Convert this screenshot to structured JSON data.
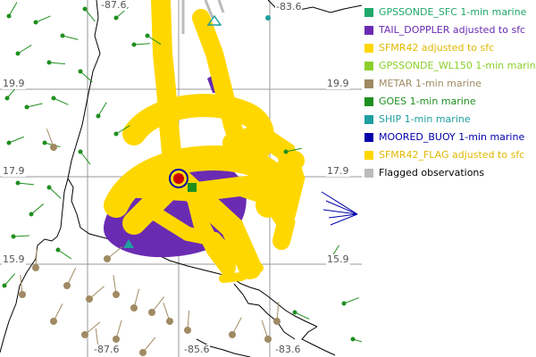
{
  "map": {
    "grid_labels": {
      "top_left": "-87.6",
      "top_right": "-83.6",
      "right_upper": "19.9",
      "left_upper": "19.9",
      "right_mid": "17.9",
      "left_mid": "17.9",
      "right_lower": "15.9",
      "left_lower": "15.9",
      "bottom_left": "-87.6",
      "bottom_mid": "-85.6",
      "bottom_right": "-83.6"
    },
    "colors": {
      "coast": "#000000",
      "grid": "#999999",
      "sfmr": "#ffd700",
      "doppler": "#6a2bb3",
      "metar": "#a08a63",
      "goes": "#1f8f1f",
      "buoy": "#0000aa",
      "ship": "#1f9f9f",
      "center": "#cc0000"
    }
  },
  "legend": {
    "items": [
      {
        "label": "GPSSONDE_SFC 1-min marine",
        "color": "#1fa86a"
      },
      {
        "label": "TAIL_DOPPLER adjusted to sfc",
        "color": "#6a2bb3"
      },
      {
        "label": "SFMR42 adjusted to sfc",
        "color": "#ffd700"
      },
      {
        "label": "GPSSONDE_WL150 1-min marine",
        "color": "#8ccf2b"
      },
      {
        "label": "METAR 1-min marine",
        "color": "#a08a63"
      },
      {
        "label": "GOES 1-min marine",
        "color": "#1f8f1f"
      },
      {
        "label": "SHIP 1-min marine",
        "color": "#1f9f9f"
      },
      {
        "label": "MOORED_BUOY 1-min marine",
        "color": "#0000aa"
      },
      {
        "label": "SFMR42_FLAG adjusted to sfc",
        "color": "#ffd700"
      },
      {
        "label": "Flagged observations",
        "color": "#bbbbbb"
      }
    ]
  }
}
